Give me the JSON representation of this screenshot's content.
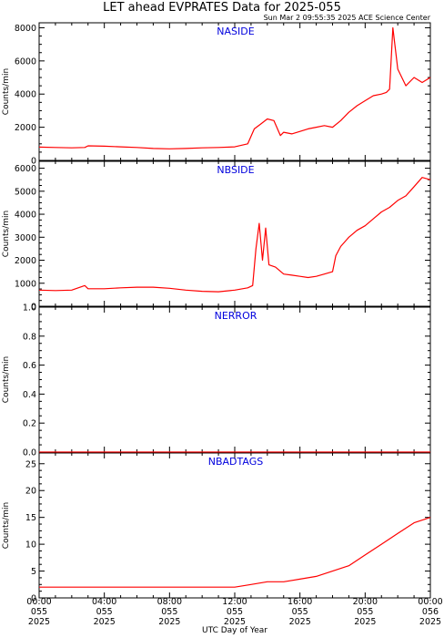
{
  "title": "LET ahead EVPRATES Data for 2025-055",
  "subtitle": "Sun Mar  2 09:55:35 2025 ACE Science Center",
  "x_axis_title": "UTC Day of Year",
  "colors": {
    "series": "#ff0000",
    "panel_label": "#0000dd",
    "axes": "#000000"
  },
  "x_ticks": [
    {
      "time": "00:00",
      "doy": "055",
      "year": "2025"
    },
    {
      "time": "04:00",
      "doy": "055",
      "year": "2025"
    },
    {
      "time": "08:00",
      "doy": "055",
      "year": "2025"
    },
    {
      "time": "12:00",
      "doy": "055",
      "year": "2025"
    },
    {
      "time": "16:00",
      "doy": "055",
      "year": "2025"
    },
    {
      "time": "20:00",
      "doy": "055",
      "year": "2025"
    },
    {
      "time": "00:00",
      "doy": "056",
      "year": "2025"
    }
  ],
  "chart_data": [
    {
      "type": "line",
      "panel_label": "NASIDE",
      "ylabel": "Counts/min",
      "xlim": [
        0,
        24
      ],
      "ylim": [
        0,
        8300
      ],
      "yticks": [
        0,
        2000,
        4000,
        6000,
        8000
      ],
      "x": [
        0,
        1,
        2,
        2.8,
        3,
        4,
        5,
        6,
        7,
        8,
        9,
        10,
        11,
        12,
        12.8,
        13.2,
        13.6,
        14,
        14.4,
        14.8,
        15,
        15.5,
        16,
        16.5,
        17,
        17.5,
        18,
        18.5,
        19,
        19.5,
        20,
        20.5,
        21,
        21.3,
        21.5,
        21.7,
        22,
        22.5,
        23,
        23.5,
        24
      ],
      "values": [
        800,
        780,
        760,
        780,
        880,
        860,
        820,
        780,
        720,
        700,
        720,
        760,
        780,
        820,
        1000,
        1900,
        2200,
        2500,
        2400,
        1500,
        1700,
        1600,
        1750,
        1900,
        2000,
        2100,
        2000,
        2400,
        2900,
        3300,
        3600,
        3900,
        4000,
        4100,
        4300,
        8000,
        5500,
        4500,
        5000,
        4700,
        5000
      ]
    },
    {
      "type": "line",
      "panel_label": "NBSIDE",
      "ylabel": "Counts/min",
      "xlim": [
        0,
        24
      ],
      "ylim": [
        0,
        6300
      ],
      "yticks": [
        0,
        1000,
        2000,
        3000,
        4000,
        5000,
        6000
      ],
      "x": [
        0,
        1,
        2,
        2.8,
        3,
        4,
        5,
        6,
        7,
        8,
        9,
        10,
        11,
        12,
        12.8,
        13.1,
        13.3,
        13.5,
        13.7,
        13.9,
        14.1,
        14.5,
        15,
        15.5,
        16,
        16.5,
        17,
        17.5,
        18,
        18.2,
        18.5,
        19,
        19.5,
        20,
        20.5,
        21,
        21.5,
        22,
        22.5,
        23,
        23.5,
        24
      ],
      "values": [
        700,
        680,
        700,
        900,
        760,
        760,
        800,
        830,
        830,
        780,
        700,
        650,
        630,
        700,
        800,
        900,
        2500,
        3600,
        2000,
        3400,
        1800,
        1700,
        1400,
        1350,
        1300,
        1250,
        1300,
        1400,
        1500,
        2200,
        2600,
        3000,
        3300,
        3500,
        3800,
        4100,
        4300,
        4600,
        4800,
        5200,
        5600,
        5500
      ]
    },
    {
      "type": "line",
      "panel_label": "NERROR",
      "ylabel": "Counts/min",
      "xlim": [
        0,
        24
      ],
      "ylim": [
        0,
        1.0
      ],
      "yticks": [
        0.0,
        0.2,
        0.4,
        0.6,
        0.8,
        1.0
      ],
      "x": [
        0,
        24
      ],
      "values": [
        0.0,
        0.0
      ]
    },
    {
      "type": "line",
      "panel_label": "NBADTAGS",
      "ylabel": "Counts/min",
      "xlim": [
        0,
        24
      ],
      "ylim": [
        0,
        27
      ],
      "yticks": [
        0,
        5,
        10,
        15,
        20,
        25
      ],
      "x": [
        0,
        2,
        4,
        6,
        8,
        10,
        12,
        13,
        14,
        15,
        16,
        17,
        18,
        19,
        20,
        21,
        22,
        23,
        24
      ],
      "values": [
        2,
        2,
        2,
        2,
        2,
        2,
        2,
        2.5,
        3,
        3,
        3.5,
        4,
        5,
        6,
        8,
        10,
        12,
        14,
        15
      ]
    }
  ]
}
